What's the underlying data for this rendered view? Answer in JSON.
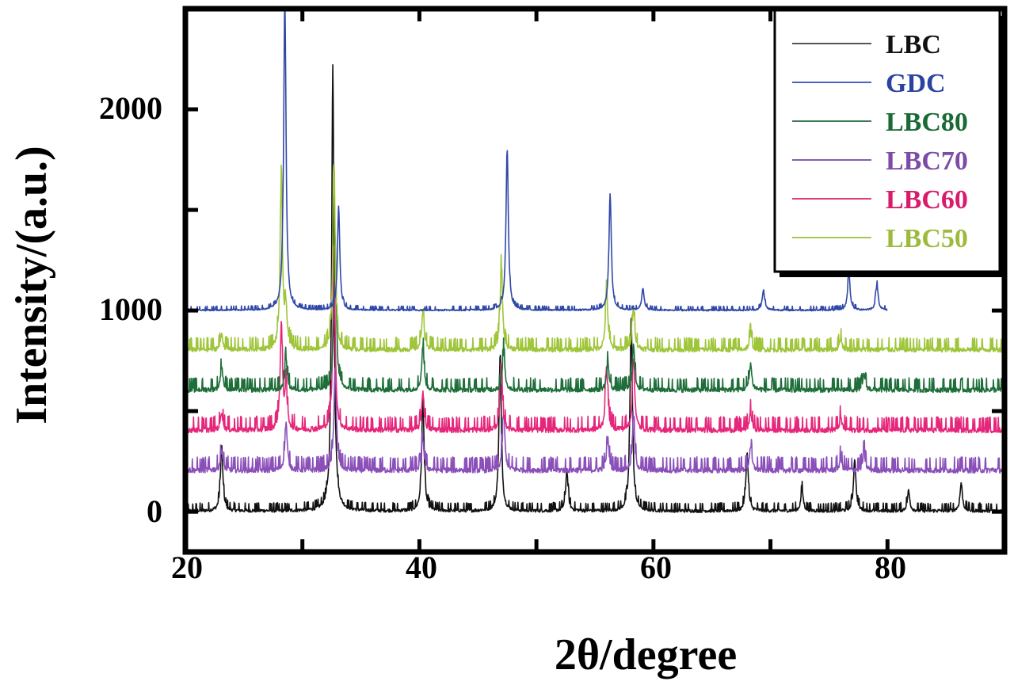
{
  "chart_data": {
    "type": "line",
    "title": "",
    "xlabel": "2θ/degree",
    "ylabel": "Intensity/(a.u.)",
    "xlim": [
      20,
      90
    ],
    "ylim": [
      -200,
      2500
    ],
    "xticks": [
      20,
      40,
      60,
      80
    ],
    "xticks_minor": [
      30,
      50,
      70
    ],
    "yticks": [
      0,
      1000,
      2000
    ],
    "yticks_minor": [
      500,
      1500
    ],
    "grid": false,
    "legend_position": "upper right",
    "series": [
      {
        "name": "LBC",
        "color": "#111111",
        "baseline": 0,
        "x_range": [
          20,
          90
        ],
        "noise": 30,
        "peaks": [
          [
            23.1,
            330
          ],
          [
            32.6,
            2215
          ],
          [
            40.3,
            560
          ],
          [
            46.9,
            780
          ],
          [
            52.6,
            200
          ],
          [
            58.1,
            980
          ],
          [
            68.0,
            290
          ],
          [
            72.7,
            110
          ],
          [
            77.2,
            260
          ],
          [
            81.8,
            100
          ],
          [
            86.3,
            140
          ]
        ]
      },
      {
        "name": "GDC",
        "color": "#3048a8",
        "baseline": 1000,
        "x_range": [
          20,
          80
        ],
        "noise": 15,
        "peaks": [
          [
            28.5,
            1550
          ],
          [
            33.1,
            500
          ],
          [
            47.5,
            800
          ],
          [
            56.3,
            580
          ],
          [
            59.1,
            110
          ],
          [
            69.4,
            100
          ],
          [
            76.7,
            190
          ],
          [
            79.1,
            130
          ]
        ]
      },
      {
        "name": "LBC80",
        "color": "#1e6e3a",
        "baseline": 600,
        "x_range": [
          20,
          90
        ],
        "noise": 45,
        "peaks": [
          [
            23.1,
            120
          ],
          [
            28.6,
            160
          ],
          [
            32.8,
            760
          ],
          [
            40.3,
            220
          ],
          [
            47.2,
            200
          ],
          [
            56.1,
            140
          ],
          [
            58.3,
            220
          ],
          [
            68.3,
            130
          ],
          [
            78.0,
            80
          ]
        ]
      },
      {
        "name": "LBC70",
        "color": "#8a4fb8",
        "baseline": 200,
        "x_range": [
          20,
          90
        ],
        "noise": 50,
        "peaks": [
          [
            23.1,
            100
          ],
          [
            28.6,
            240
          ],
          [
            32.8,
            520
          ],
          [
            40.3,
            150
          ],
          [
            47.2,
            280
          ],
          [
            56.1,
            160
          ],
          [
            58.3,
            260
          ],
          [
            68.3,
            120
          ],
          [
            76.0,
            60
          ],
          [
            78.0,
            90
          ]
        ]
      },
      {
        "name": "LBC60",
        "color": "#e5267a",
        "baseline": 400,
        "x_range": [
          20,
          90
        ],
        "noise": 50,
        "peaks": [
          [
            23.1,
            90
          ],
          [
            28.2,
            520
          ],
          [
            28.6,
            200
          ],
          [
            32.7,
            860
          ],
          [
            40.3,
            190
          ],
          [
            47.0,
            320
          ],
          [
            56.0,
            330
          ],
          [
            58.3,
            360
          ],
          [
            68.3,
            90
          ],
          [
            76.0,
            60
          ]
        ]
      },
      {
        "name": "LBC50",
        "color": "#9fc53a",
        "baseline": 800,
        "x_range": [
          20,
          90
        ],
        "noise": 45,
        "peaks": [
          [
            23.1,
            80
          ],
          [
            28.2,
            850
          ],
          [
            28.6,
            180
          ],
          [
            32.7,
            920
          ],
          [
            40.3,
            200
          ],
          [
            47.0,
            420
          ],
          [
            56.0,
            300
          ],
          [
            58.3,
            220
          ],
          [
            68.3,
            80
          ],
          [
            76.0,
            60
          ]
        ]
      }
    ]
  },
  "legend": {
    "items": [
      {
        "label": "LBC",
        "color": "#111111"
      },
      {
        "label": "GDC",
        "color": "#2a43a0"
      },
      {
        "label": "LBC80",
        "color": "#1a6a35"
      },
      {
        "label": "LBC70",
        "color": "#7d4aa8"
      },
      {
        "label": "LBC60",
        "color": "#d81b6a"
      },
      {
        "label": "LBC50",
        "color": "#9cba3c"
      }
    ]
  },
  "axes": {
    "x_tick_labels": [
      "20",
      "40",
      "60",
      "80"
    ],
    "y_tick_labels": [
      "0",
      "1000",
      "2000"
    ],
    "xlabel": "2θ/degree",
    "ylabel": "Intensity/(a.u.)"
  }
}
